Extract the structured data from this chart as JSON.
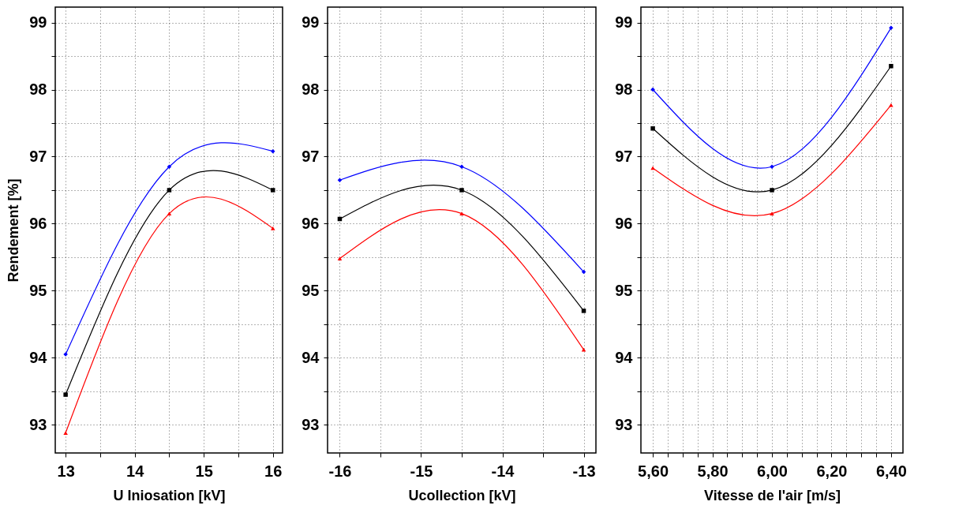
{
  "chart_data": [
    {
      "type": "line",
      "xlabel": "U Iniosation [kV]",
      "ylabel": "Rendement [%]",
      "grid": true,
      "line_style": "solid",
      "xlim": [
        12.85,
        16.14
      ],
      "ylim": [
        92.58,
        99.23
      ],
      "xticks": [
        13,
        {
          "value": 13.5,
          "label": null
        },
        14,
        {
          "value": 14.5,
          "label": null
        },
        15,
        {
          "value": 15.5,
          "label": null
        },
        16
      ],
      "yticks": [
        93,
        {
          "value": 93.5,
          "label": null
        },
        94,
        {
          "value": 94.5,
          "label": null
        },
        95,
        {
          "value": 95.5,
          "label": null
        },
        96,
        {
          "value": 96.5,
          "label": null
        },
        97,
        {
          "value": 97.5,
          "label": null
        },
        98,
        {
          "value": 98.5,
          "label": null
        },
        99
      ],
      "x": [
        13,
        14.5,
        16
      ],
      "series": [
        {
          "color": "#0000ff",
          "marker": "diamond",
          "values": [
            94.05,
            96.85,
            97.08
          ]
        },
        {
          "color": "#000000",
          "marker": "square",
          "values": [
            93.45,
            96.5,
            96.5
          ]
        },
        {
          "color": "#ff0000",
          "marker": "triangle",
          "values": [
            92.88,
            96.15,
            95.93
          ]
        }
      ]
    },
    {
      "type": "line",
      "xlabel": "Ucollection [kV]",
      "grid": true,
      "line_style": "solid",
      "xlim": [
        -16.15,
        -12.85
      ],
      "ylim": [
        92.58,
        99.23
      ],
      "xticks": [
        -16,
        {
          "value": -15.5,
          "label": null
        },
        -15,
        {
          "value": -14.5,
          "label": null
        },
        -14,
        {
          "value": -13.5,
          "label": null
        },
        -13
      ],
      "yticks": [
        93,
        {
          "value": 93.5,
          "label": null
        },
        94,
        {
          "value": 94.5,
          "label": null
        },
        95,
        {
          "value": 95.5,
          "label": null
        },
        96,
        {
          "value": 96.5,
          "label": null
        },
        97,
        {
          "value": 97.5,
          "label": null
        },
        98,
        {
          "value": 98.5,
          "label": null
        },
        99
      ],
      "x": [
        -16,
        -14.5,
        -13
      ],
      "series": [
        {
          "color": "#0000ff",
          "marker": "diamond",
          "values": [
            96.65,
            96.85,
            95.28
          ]
        },
        {
          "color": "#000000",
          "marker": "square",
          "values": [
            96.07,
            96.5,
            94.7
          ]
        },
        {
          "color": "#ff0000",
          "marker": "triangle",
          "values": [
            95.48,
            96.15,
            94.12
          ]
        }
      ]
    },
    {
      "type": "line",
      "xlabel": "Vitesse de l'air [m/s]",
      "grid": true,
      "line_style": "solid",
      "xlim": [
        5.56,
        6.44
      ],
      "ylim": [
        92.58,
        99.23
      ],
      "xticks": [
        {
          "value": 5.6,
          "label": "5,60"
        },
        {
          "value": 5.65,
          "label": null
        },
        {
          "value": 5.7,
          "label": null
        },
        {
          "value": 5.75,
          "label": null
        },
        {
          "value": 5.8,
          "label": "5,80"
        },
        {
          "value": 5.85,
          "label": null
        },
        {
          "value": 5.9,
          "label": null
        },
        {
          "value": 5.95,
          "label": null
        },
        {
          "value": 6.0,
          "label": "6,00"
        },
        {
          "value": 6.05,
          "label": null
        },
        {
          "value": 6.1,
          "label": null
        },
        {
          "value": 6.15,
          "label": null
        },
        {
          "value": 6.2,
          "label": "6,20"
        },
        {
          "value": 6.25,
          "label": null
        },
        {
          "value": 6.3,
          "label": null
        },
        {
          "value": 6.35,
          "label": null
        },
        {
          "value": 6.4,
          "label": "6,40"
        }
      ],
      "yticks": [
        93,
        {
          "value": 93.5,
          "label": null
        },
        94,
        {
          "value": 94.5,
          "label": null
        },
        95,
        {
          "value": 95.5,
          "label": null
        },
        96,
        {
          "value": 96.5,
          "label": null
        },
        97,
        {
          "value": 97.5,
          "label": null
        },
        98,
        {
          "value": 98.5,
          "label": null
        },
        99
      ],
      "x": [
        5.6,
        6.0,
        6.4
      ],
      "series": [
        {
          "color": "#0000ff",
          "marker": "diamond",
          "values": [
            98.0,
            96.85,
            98.92
          ]
        },
        {
          "color": "#000000",
          "marker": "square",
          "values": [
            97.42,
            96.5,
            98.35
          ]
        },
        {
          "color": "#ff0000",
          "marker": "triangle",
          "values": [
            96.83,
            96.15,
            97.77
          ]
        }
      ]
    }
  ]
}
